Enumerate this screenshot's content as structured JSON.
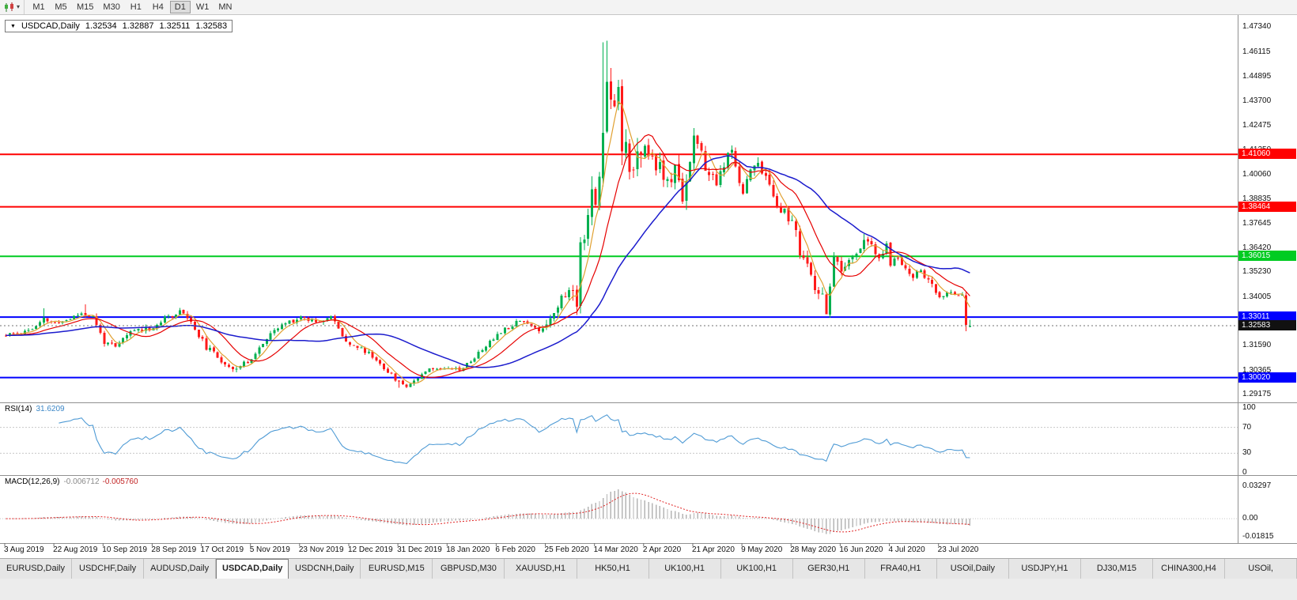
{
  "icons": {
    "caret_down": "▾",
    "triangle_down": "▼"
  },
  "toolbar": {
    "timeframes": [
      "M1",
      "M5",
      "M15",
      "M30",
      "H1",
      "H4",
      "D1",
      "W1",
      "MN"
    ],
    "active_timeframe": "D1"
  },
  "chart": {
    "symbol_label": "USDCAD,Daily",
    "ohlc": {
      "open": "1.32534",
      "high": "1.32887",
      "low": "1.32511",
      "close": "1.32583"
    },
    "price_axis_labels": [
      "1.47340",
      "1.46115",
      "1.44895",
      "1.43700",
      "1.42475",
      "1.41250",
      "1.40060",
      "1.38835",
      "1.37645",
      "1.36420",
      "1.35230",
      "1.34005",
      "1.31590",
      "1.30365",
      "1.29175"
    ],
    "levels": [
      {
        "value": 1.4106,
        "label": "1.41060",
        "color": "#ff0000"
      },
      {
        "value": 1.38464,
        "label": "1.38464",
        "color": "#ff0000"
      },
      {
        "value": 1.36015,
        "label": "1.36015",
        "color": "#00cc22"
      },
      {
        "value": 1.33011,
        "label": "1.33011",
        "color": "#0000ff"
      },
      {
        "value": 1.3002,
        "label": "1.30020",
        "color": "#0000ff"
      }
    ],
    "current_price": {
      "value": 1.32583,
      "label": "1.32583",
      "badge_color": "#111111"
    },
    "date_axis_labels": [
      "3 Aug 2019",
      "22 Aug 2019",
      "10 Sep 2019",
      "28 Sep 2019",
      "17 Oct 2019",
      "5 Nov 2019",
      "23 Nov 2019",
      "12 Dec 2019",
      "31 Dec 2019",
      "18 Jan 2020",
      "6 Feb 2020",
      "25 Feb 2020",
      "14 Mar 2020",
      "2 Apr 2020",
      "21 Apr 2020",
      "9 May 2020",
      "28 May 2020",
      "16 Jun 2020",
      "4 Jul 2020",
      "23 Jul 2020"
    ]
  },
  "rsi": {
    "label": "RSI(14)",
    "value": "31.6209",
    "line_color": "#4f9bd5",
    "axis": [
      {
        "text": "100",
        "value": 100
      },
      {
        "text": "70",
        "value": 70
      },
      {
        "text": "30",
        "value": 30
      },
      {
        "text": "0",
        "value": 0
      }
    ],
    "dotted_levels": [
      70,
      30
    ]
  },
  "macd": {
    "label": "MACD(12,26,9)",
    "value_main": "-0.006712",
    "value_signal": "-0.005760",
    "histogram_color": "#b4b4b4",
    "signal_color": "#e02020",
    "axis": {
      "max": 0.0405,
      "min": -0.0225
    },
    "axis_labels": [
      {
        "text": "0.03297",
        "value": 0.03297
      },
      {
        "text": "0.00",
        "value": 0
      },
      {
        "text": "-0.01815",
        "value": -0.01815
      }
    ]
  },
  "tabs": {
    "items": [
      "EURUSD,Daily",
      "USDCHF,Daily",
      "AUDUSD,Daily",
      "USDCAD,Daily",
      "USDCNH,Daily",
      "EURUSD,M15",
      "GBPUSD,M30",
      "XAUUSD,H1",
      "HK50,H1",
      "UK100,H1",
      "UK100,H1",
      "GER30,H1",
      "FRA40,H1",
      "USOil,Daily",
      "USDJPY,H1",
      "DJ30,M15",
      "CHINA300,H4",
      "USOil,"
    ],
    "active_index": 3
  },
  "chart_data": {
    "type": "candlestick",
    "symbol": "USDCAD",
    "timeframe": "Daily",
    "bars": 256,
    "seed": 11,
    "price_axis": {
      "max": 1.4775,
      "min": 1.2895
    },
    "candle_up_color": "#00b050",
    "candle_down_color": "#ff1a1a",
    "moving_averages": [
      {
        "period": 5,
        "color": "#e0a030",
        "width": 1.2
      },
      {
        "period": 13,
        "color": "#e60000",
        "width": 1.2
      },
      {
        "period": 34,
        "color": "#1b1bcd",
        "width": 1.5
      }
    ],
    "rsi_period": 14,
    "macd_params": [
      12,
      26,
      9
    ],
    "close_anchors": [
      [
        0,
        1.321
      ],
      [
        4,
        1.3225
      ],
      [
        8,
        1.3252
      ],
      [
        10,
        1.329
      ],
      [
        13,
        1.3268
      ],
      [
        17,
        1.3295
      ],
      [
        20,
        1.3322
      ],
      [
        23,
        1.33
      ],
      [
        26,
        1.318
      ],
      [
        29,
        1.3148
      ],
      [
        32,
        1.3215
      ],
      [
        35,
        1.3242
      ],
      [
        39,
        1.3248
      ],
      [
        42,
        1.3292
      ],
      [
        45,
        1.3322
      ],
      [
        47,
        1.333
      ],
      [
        50,
        1.3242
      ],
      [
        53,
        1.3152
      ],
      [
        56,
        1.3102
      ],
      [
        59,
        1.3062
      ],
      [
        61,
        1.3044
      ],
      [
        64,
        1.3082
      ],
      [
        66,
        1.3122
      ],
      [
        68,
        1.3172
      ],
      [
        71,
        1.3232
      ],
      [
        74,
        1.3272
      ],
      [
        78,
        1.33
      ],
      [
        82,
        1.3282
      ],
      [
        86,
        1.3302
      ],
      [
        89,
        1.3212
      ],
      [
        91,
        1.3168
      ],
      [
        93,
        1.3152
      ],
      [
        96,
        1.3122
      ],
      [
        99,
        1.3072
      ],
      [
        102,
        1.3012
      ],
      [
        104,
        1.298
      ],
      [
        106,
        1.2964
      ],
      [
        108,
        1.2986
      ],
      [
        110,
        1.3022
      ],
      [
        112,
        1.3052
      ],
      [
        114,
        1.3042
      ],
      [
        117,
        1.3056
      ],
      [
        120,
        1.3042
      ],
      [
        123,
        1.3082
      ],
      [
        126,
        1.3142
      ],
      [
        129,
        1.3192
      ],
      [
        130,
        1.3222
      ],
      [
        133,
        1.3252
      ],
      [
        136,
        1.3292
      ],
      [
        139,
        1.3256
      ],
      [
        141,
        1.3232
      ],
      [
        143,
        1.3272
      ],
      [
        145,
        1.3332
      ],
      [
        147,
        1.3392
      ],
      [
        149,
        1.3432
      ],
      [
        151,
        1.3386
      ],
      [
        152,
        1.366
      ],
      [
        153,
        1.3732
      ],
      [
        155,
        1.3902
      ],
      [
        156,
        1.3852
      ],
      [
        157,
        1.3992
      ],
      [
        158,
        1.424
      ],
      [
        159,
        1.445
      ],
      [
        160,
        1.4434
      ],
      [
        161,
        1.4382
      ],
      [
        162,
        1.4442
      ],
      [
        163,
        1.4172
      ],
      [
        164,
        1.4186
      ],
      [
        165,
        1.4052
      ],
      [
        166,
        1.3996
      ],
      [
        167,
        1.4092
      ],
      [
        168,
        1.4062
      ],
      [
        169,
        1.4132
      ],
      [
        171,
        1.4092
      ],
      [
        173,
        1.4032
      ],
      [
        175,
        1.3952
      ],
      [
        177,
        1.4022
      ],
      [
        179,
        1.3902
      ],
      [
        181,
        1.4082
      ],
      [
        182,
        1.4192
      ],
      [
        184,
        1.4092
      ],
      [
        186,
        1.4002
      ],
      [
        188,
        1.3952
      ],
      [
        190,
        1.4062
      ],
      [
        192,
        1.4102
      ],
      [
        194,
        1.3982
      ],
      [
        195,
        1.3932
      ],
      [
        197,
        1.4022
      ],
      [
        199,
        1.4082
      ],
      [
        201,
        1.3982
      ],
      [
        203,
        1.3902
      ],
      [
        205,
        1.3842
      ],
      [
        207,
        1.3792
      ],
      [
        208,
        1.3782
      ],
      [
        210,
        1.3622
      ],
      [
        212,
        1.3562
      ],
      [
        214,
        1.3422
      ],
      [
        216,
        1.3392
      ],
      [
        217,
        1.3342
      ],
      [
        219,
        1.3582
      ],
      [
        221,
        1.3532
      ],
      [
        223,
        1.3562
      ],
      [
        225,
        1.3622
      ],
      [
        227,
        1.3682
      ],
      [
        229,
        1.3642
      ],
      [
        231,
        1.3582
      ],
      [
        233,
        1.3652
      ],
      [
        234,
        1.3572
      ],
      [
        236,
        1.3592
      ],
      [
        238,
        1.3542
      ],
      [
        240,
        1.3502
      ],
      [
        242,
        1.3532
      ],
      [
        244,
        1.3482
      ],
      [
        246,
        1.3422
      ],
      [
        247,
        1.3398
      ],
      [
        249,
        1.3412
      ],
      [
        251,
        1.3422
      ],
      [
        253,
        1.3415
      ],
      [
        254,
        1.3262
      ],
      [
        255,
        1.32583
      ]
    ],
    "volatility": [
      [
        0,
        0.0011
      ],
      [
        24,
        0.0013
      ],
      [
        47,
        0.0014
      ],
      [
        62,
        0.0012
      ],
      [
        86,
        0.0012
      ],
      [
        100,
        0.001
      ],
      [
        110,
        0.0009
      ],
      [
        128,
        0.0011
      ],
      [
        143,
        0.0022
      ],
      [
        150,
        0.0048
      ],
      [
        160,
        0.0062
      ],
      [
        170,
        0.0042
      ],
      [
        183,
        0.0032
      ],
      [
        196,
        0.0026
      ],
      [
        209,
        0.003
      ],
      [
        218,
        0.0022
      ],
      [
        235,
        0.0016
      ],
      [
        248,
        0.0013
      ],
      [
        254,
        0.0005
      ]
    ],
    "overrides": {
      "10": {
        "h": 1.3345
      },
      "21": {
        "h": 1.3365
      },
      "61": {
        "l": 1.3028
      },
      "104": {
        "l": 1.2951
      },
      "106": {
        "l": 1.2949
      },
      "155": {
        "h": 1.3998
      },
      "158": {
        "h": 1.466
      },
      "159": {
        "h": 1.4668
      },
      "217": {
        "l": 1.3315
      },
      "227": {
        "h": 1.3712
      },
      "254": {
        "o": 1.3408,
        "h": 1.3425,
        "l": 1.3232,
        "c": 1.3262
      },
      "255": {
        "o": 1.32534,
        "h": 1.32887,
        "l": 1.32511,
        "c": 1.32583
      }
    }
  }
}
